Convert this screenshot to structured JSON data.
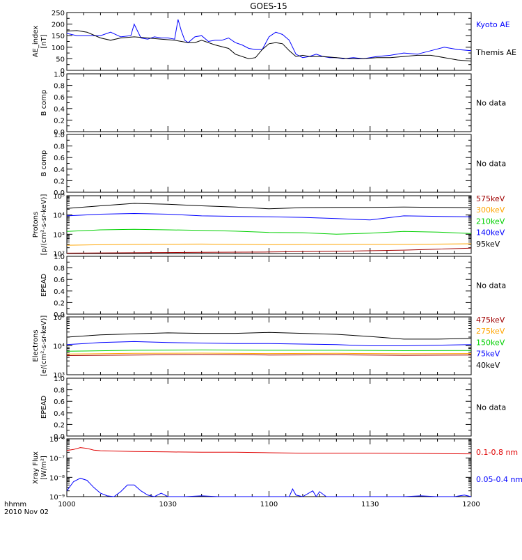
{
  "title": "GOES-15",
  "xaxis": {
    "ticks": [
      "1000",
      "1030",
      "1100",
      "1130",
      "1200"
    ],
    "tick_minutes": [
      0,
      30,
      60,
      90,
      120
    ],
    "minor_step_minutes": 5,
    "corner_line1": "hhmm",
    "corner_line2": "2010 Nov 02"
  },
  "colors": {
    "black": "#000000",
    "blue": "#0000ff",
    "red": "#a00000",
    "orange": "#ffa500",
    "green": "#00d000",
    "red_bright": "#e00000"
  },
  "chart_data": [
    {
      "type": "line",
      "ylabel": [
        "AE_index",
        "[nT]"
      ],
      "scale": "linear",
      "ylim": [
        0,
        250
      ],
      "yticks": [
        "0",
        "50",
        "100",
        "150",
        "200",
        "250"
      ],
      "series": [
        {
          "name": "Kyoto AE",
          "color": "#0000ff",
          "x": [
            0,
            3,
            6,
            10,
            13,
            16,
            19,
            20,
            22,
            24,
            26,
            28,
            30,
            32,
            33,
            34,
            35,
            36,
            38,
            40,
            42,
            44,
            46,
            48,
            50,
            52,
            54,
            56,
            58,
            60,
            62,
            64,
            66,
            68,
            70,
            72,
            74,
            76,
            78,
            80,
            82,
            85,
            88,
            92,
            96,
            100,
            104,
            108,
            112,
            116,
            120
          ],
          "y": [
            160,
            150,
            150,
            150,
            165,
            145,
            150,
            200,
            140,
            135,
            145,
            140,
            140,
            135,
            220,
            170,
            130,
            120,
            145,
            150,
            125,
            130,
            130,
            140,
            120,
            110,
            95,
            90,
            90,
            145,
            165,
            155,
            130,
            70,
            55,
            60,
            70,
            60,
            55,
            55,
            50,
            55,
            50,
            60,
            65,
            75,
            70,
            85,
            100,
            90,
            85
          ]
        },
        {
          "name": "Themis AE",
          "color": "#000000",
          "x": [
            0,
            3,
            6,
            10,
            13,
            16,
            20,
            24,
            28,
            32,
            34,
            36,
            38,
            40,
            44,
            48,
            50,
            54,
            56,
            58,
            60,
            62,
            64,
            66,
            68,
            70,
            72,
            76,
            80,
            84,
            88,
            92,
            96,
            100,
            104,
            108,
            112,
            116,
            120
          ],
          "y": [
            170,
            172,
            165,
            140,
            130,
            140,
            145,
            140,
            135,
            130,
            125,
            120,
            120,
            130,
            110,
            95,
            70,
            50,
            55,
            90,
            115,
            120,
            115,
            85,
            60,
            65,
            60,
            60,
            55,
            50,
            50,
            55,
            55,
            60,
            65,
            65,
            55,
            45,
            40
          ]
        }
      ]
    },
    {
      "type": "line",
      "ylabel": [
        "B comp"
      ],
      "scale": "linear",
      "ylim": [
        0,
        1
      ],
      "yticks": [
        "0.0",
        "0.2",
        "0.4",
        "0.6",
        "0.8",
        "1.0"
      ],
      "note": "No data",
      "series": []
    },
    {
      "type": "line",
      "ylabel": [
        "B comp"
      ],
      "scale": "linear",
      "ylim": [
        0,
        1
      ],
      "yticks": [
        "0.0",
        "0.2",
        "0.4",
        "0.6",
        "0.8",
        "1.0"
      ],
      "note": "No data",
      "series": []
    },
    {
      "type": "line",
      "ylabel": [
        "Protons",
        "[p/(cm²-s-sr-keV)]"
      ],
      "scale": "log",
      "ylim": [
        100,
        100000
      ],
      "yticks": [
        "10²",
        "10³",
        "10⁴",
        "10⁵"
      ],
      "ytick_values": [
        100,
        1000,
        10000,
        100000
      ],
      "series": [
        {
          "name": "575keV",
          "color": "#a00000",
          "x": [
            0,
            20,
            40,
            60,
            80,
            100,
            120
          ],
          "y": [
            105,
            110,
            115,
            120,
            130,
            150,
            190
          ]
        },
        {
          "name": "300keV",
          "color": "#ffa500",
          "x": [
            0,
            20,
            40,
            60,
            80,
            100,
            120
          ],
          "y": [
            270,
            300,
            310,
            290,
            300,
            300,
            320
          ]
        },
        {
          "name": "210keV",
          "color": "#00d000",
          "x": [
            0,
            10,
            20,
            30,
            40,
            50,
            60,
            70,
            80,
            90,
            100,
            110,
            120
          ],
          "y": [
            1400,
            1700,
            1800,
            1700,
            1600,
            1450,
            1250,
            1200,
            1000,
            1150,
            1400,
            1300,
            1100
          ]
        },
        {
          "name": "140keV",
          "color": "#0000ff",
          "x": [
            0,
            10,
            20,
            30,
            40,
            50,
            60,
            70,
            80,
            90,
            100,
            110,
            120
          ],
          "y": [
            9000,
            11000,
            12000,
            11000,
            9000,
            8500,
            8000,
            7500,
            6500,
            5500,
            9000,
            8500,
            8000
          ]
        },
        {
          "name": "95keV",
          "color": "#000000",
          "x": [
            0,
            10,
            20,
            30,
            40,
            50,
            60,
            70,
            80,
            90,
            100,
            110,
            120
          ],
          "y": [
            22000,
            30000,
            40000,
            36000,
            30000,
            26000,
            21000,
            24000,
            25000,
            25000,
            26000,
            25000,
            24000
          ]
        }
      ]
    },
    {
      "type": "line",
      "ylabel": [
        "EPEAD"
      ],
      "scale": "linear",
      "ylim": [
        0,
        1
      ],
      "yticks": [
        "0.0",
        "0.2",
        "0.4",
        "0.6",
        "0.8",
        "1.0"
      ],
      "note": "No data",
      "series": []
    },
    {
      "type": "line",
      "ylabel": [
        "Electrons",
        "[e/(cm²-s-sr-keV)]"
      ],
      "scale": "log",
      "ylim": [
        1000,
        100000
      ],
      "yticks": [
        "10³",
        "10⁴",
        "10⁵"
      ],
      "ytick_values": [
        1000,
        10000,
        100000
      ],
      "series": [
        {
          "name": "475keV",
          "color": "#a00000",
          "x": [
            0,
            20,
            40,
            60,
            80,
            100,
            120
          ],
          "y": [
            4600,
            4800,
            5000,
            4800,
            4900,
            4700,
            4800
          ]
        },
        {
          "name": "275keV",
          "color": "#ffa500",
          "x": [
            0,
            20,
            40,
            60,
            80,
            100,
            120
          ],
          "y": [
            5200,
            5500,
            5600,
            5400,
            5500,
            5300,
            5400
          ]
        },
        {
          "name": "150keV",
          "color": "#00d000",
          "x": [
            0,
            20,
            40,
            60,
            80,
            100,
            120
          ],
          "y": [
            6500,
            7000,
            7200,
            7000,
            7000,
            6800,
            6900
          ]
        },
        {
          "name": "75keV",
          "color": "#0000ff",
          "x": [
            0,
            10,
            20,
            30,
            40,
            50,
            60,
            70,
            80,
            90,
            100,
            110,
            120
          ],
          "y": [
            11000,
            13000,
            14000,
            13000,
            12500,
            12000,
            12000,
            11500,
            11000,
            10000,
            10000,
            10500,
            11000
          ]
        },
        {
          "name": "40keV",
          "color": "#000000",
          "x": [
            0,
            10,
            20,
            30,
            40,
            50,
            60,
            70,
            80,
            90,
            100,
            110,
            120
          ],
          "y": [
            20000,
            24000,
            26000,
            28000,
            27000,
            27000,
            29000,
            27000,
            25000,
            21000,
            17000,
            17000,
            18000
          ]
        }
      ]
    },
    {
      "type": "line",
      "ylabel": [
        "EPEAD"
      ],
      "scale": "linear",
      "ylim": [
        0,
        1
      ],
      "yticks": [
        "0.0",
        "0.2",
        "0.4",
        "0.6",
        "0.8",
        "1.0"
      ],
      "note": "No data",
      "series": []
    },
    {
      "type": "line",
      "ylabel": [
        "Xray Flux",
        "[W/m²]"
      ],
      "scale": "log",
      "ylim": [
        1e-09,
        1e-06
      ],
      "yticks": [
        "10⁻⁹",
        "10⁻⁸",
        "10⁻⁷",
        "10⁻⁶"
      ],
      "ytick_values": [
        1e-09,
        1e-08,
        1e-07,
        1e-06
      ],
      "series": [
        {
          "name": "0.1-0.8 nm",
          "color": "#e00000",
          "x": [
            0,
            2,
            4,
            6,
            8,
            10,
            20,
            30,
            40,
            50,
            60,
            70,
            80,
            90,
            100,
            110,
            120
          ],
          "y": [
            2.5e-07,
            2.8e-07,
            3.5e-07,
            3.2e-07,
            2.6e-07,
            2.4e-07,
            2.2e-07,
            2.1e-07,
            2e-07,
            2e-07,
            1.9e-07,
            1.8e-07,
            1.8e-07,
            1.8e-07,
            1.75e-07,
            1.7e-07,
            1.65e-07
          ],
          "label_value": 2e-07
        },
        {
          "name": "0.05-0.4 nm",
          "color": "#0000ff",
          "x": [
            0,
            2,
            4,
            6,
            8,
            10,
            12,
            14,
            16,
            18,
            20,
            22,
            24,
            26,
            28,
            30,
            35,
            40,
            45,
            50,
            60,
            66,
            67,
            68,
            70,
            73,
            74,
            75,
            77,
            80,
            90,
            100,
            105,
            110,
            115,
            118,
            120
          ],
          "y": [
            2e-09,
            6e-09,
            9e-09,
            7e-09,
            3e-09,
            1.5e-09,
            1.1e-09,
            1e-09,
            1.8e-09,
            4e-09,
            4e-09,
            2e-09,
            1.2e-09,
            1e-09,
            1.5e-09,
            1e-09,
            1e-09,
            1.1e-09,
            1e-09,
            1e-09,
            1e-09,
            1e-09,
            2.5e-09,
            1.2e-09,
            1e-09,
            2e-09,
            1e-09,
            1.8e-09,
            1e-09,
            1e-09,
            1e-09,
            1e-09,
            1.1e-09,
            1e-09,
            1e-09,
            1.2e-09,
            1e-09
          ],
          "label_value": 2.5e-09
        }
      ]
    }
  ]
}
